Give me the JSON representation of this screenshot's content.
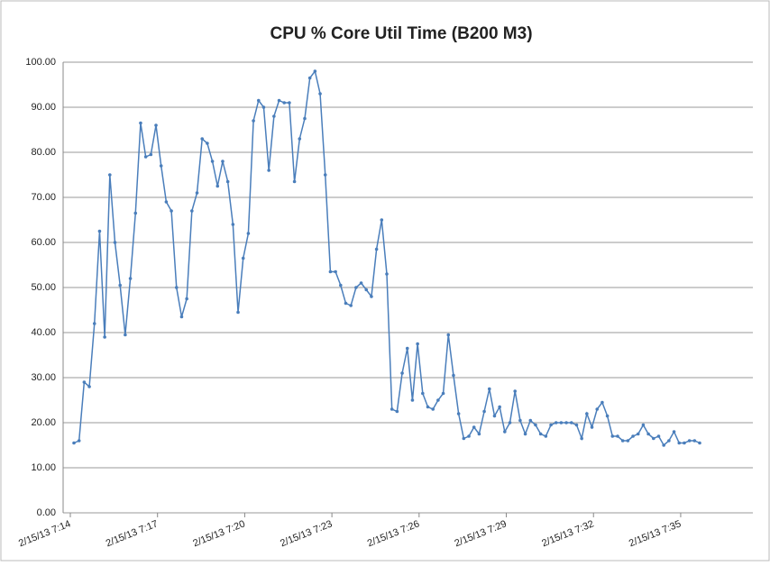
{
  "chart_data": {
    "type": "line",
    "title": "CPU % Core Util Time (B200 M3)",
    "categories": [
      "2/15/13 7:14",
      null,
      null,
      null,
      null,
      null,
      null,
      null,
      null,
      null,
      null,
      null,
      null,
      null,
      null,
      null,
      null,
      "2/15/13 7:17",
      null,
      null,
      null,
      null,
      null,
      null,
      null,
      null,
      null,
      null,
      null,
      null,
      null,
      null,
      null,
      null,
      "2/15/13 7:20",
      null,
      null,
      null,
      null,
      null,
      null,
      null,
      null,
      null,
      null,
      null,
      null,
      null,
      null,
      null,
      null,
      "2/15/13 7:23",
      null,
      null,
      null,
      null,
      null,
      null,
      null,
      null,
      null,
      null,
      null,
      null,
      null,
      null,
      null,
      null,
      "2/15/13 7:26",
      null,
      null,
      null,
      null,
      null,
      null,
      null,
      null,
      null,
      null,
      null,
      null,
      null,
      null,
      null,
      null,
      "2/15/13 7:29",
      null,
      null,
      null,
      null,
      null,
      null,
      null,
      null,
      null,
      null,
      null,
      null,
      null,
      null,
      null,
      null,
      "2/15/13 7:32",
      null,
      null,
      null,
      null,
      null,
      null,
      null,
      null,
      null,
      null,
      null,
      null,
      null,
      null,
      null,
      null,
      "2/15/13 7:35",
      null,
      null,
      null
    ],
    "series": [
      {
        "name": "CPU % Core Util Time",
        "color": "#4a7ebb",
        "values": [
          15.5,
          16,
          29,
          28,
          42,
          62.5,
          39,
          75,
          60,
          50.5,
          39.5,
          52,
          66.5,
          86.5,
          79,
          79.5,
          86,
          77,
          69,
          67,
          50,
          43.5,
          47.5,
          67,
          71,
          83,
          82,
          78,
          72.5,
          78,
          73.5,
          64,
          44.5,
          56.5,
          62,
          87,
          91.5,
          90,
          76,
          88,
          91.5,
          91,
          91,
          73.5,
          83,
          87.5,
          96.5,
          98,
          93,
          75,
          53.5,
          53.5,
          50.5,
          46.5,
          46,
          50,
          51,
          49.5,
          48,
          58.5,
          65,
          53,
          23,
          22.5,
          31,
          36.5,
          25,
          37.5,
          26.5,
          23.5,
          23,
          25,
          26.5,
          39.5,
          30.5,
          22,
          16.5,
          17,
          19,
          17.5,
          22.5,
          27.5,
          21.5,
          23.5,
          18,
          20,
          27,
          20.5,
          17.5,
          20.5,
          19.5,
          17.5,
          17,
          19.5,
          20,
          20,
          20,
          20,
          19.5,
          16.5,
          22,
          19,
          23,
          24.5,
          21.5,
          17,
          17,
          16,
          16,
          17,
          17.5,
          19.5,
          17.5,
          16.5,
          17,
          15,
          16,
          18,
          15.5,
          15.5,
          16,
          16,
          15.5
        ]
      }
    ],
    "ylim": [
      0,
      100
    ],
    "yticks": [
      {
        "value": 0,
        "label": "0.00"
      },
      {
        "value": 10,
        "label": "10.00"
      },
      {
        "value": 20,
        "label": "20.00"
      },
      {
        "value": 30,
        "label": "30.00"
      },
      {
        "value": 40,
        "label": "40.00"
      },
      {
        "value": 50,
        "label": "50.00"
      },
      {
        "value": 60,
        "label": "60.00"
      },
      {
        "value": 70,
        "label": "70.00"
      },
      {
        "value": 80,
        "label": "80.00"
      },
      {
        "value": 90,
        "label": "90.00"
      },
      {
        "value": 100,
        "label": "100.00"
      }
    ],
    "grid": true
  }
}
